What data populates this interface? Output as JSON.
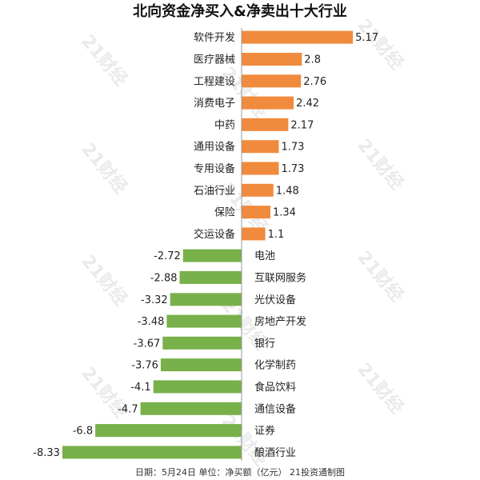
{
  "chart_data": {
    "type": "bar",
    "orientation": "horizontal",
    "title": "北向资金净买入&净卖出十大行业",
    "footer": "日期：5月24日 单位：净买额（亿元） 21投资通制图",
    "watermark": "21财经",
    "colors": {
      "positive": "#f08a3c",
      "negative": "#78b04a"
    },
    "categories": [
      "软件开发",
      "医疗器械",
      "工程建设",
      "消费电子",
      "中药",
      "通用设备",
      "专用设备",
      "石油行业",
      "保险",
      "交运设备",
      "电池",
      "互联网服务",
      "光伏设备",
      "房地产开发",
      "银行",
      "化学制药",
      "食品饮料",
      "通信设备",
      "证券",
      "酿酒行业"
    ],
    "values": [
      5.17,
      2.8,
      2.76,
      2.42,
      2.17,
      1.73,
      1.73,
      1.48,
      1.34,
      1.1,
      -2.72,
      -2.88,
      -3.32,
      -3.48,
      -3.67,
      -3.76,
      -4.1,
      -4.7,
      -6.8,
      -8.33
    ],
    "value_labels": [
      "5.17",
      "2.8",
      "2.76",
      "2.42",
      "2.17",
      "1.73",
      "1.73",
      "1.48",
      "1.34",
      "1.1",
      "-2.72",
      "-2.88",
      "-3.32",
      "-3.48",
      "-3.67",
      "-3.76",
      "-4.1",
      "-4.7",
      "-6.8",
      "-8.33"
    ],
    "xlim": [
      -8.33,
      5.17
    ],
    "grid": false
  }
}
